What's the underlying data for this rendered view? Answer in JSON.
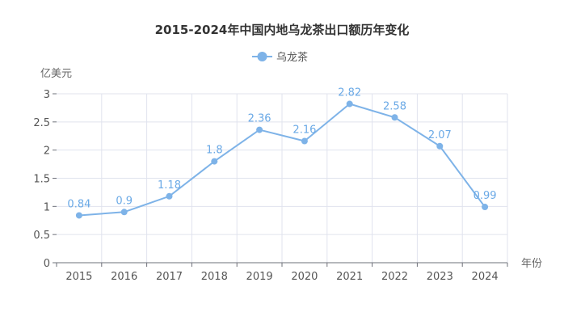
{
  "chart_data": {
    "type": "line",
    "title": "2015-2024年中国内地乌龙茶出口额历年变化",
    "xlabel": "年份",
    "ylabel": "亿美元",
    "categories": [
      "2015",
      "2016",
      "2017",
      "2018",
      "2019",
      "2020",
      "2021",
      "2022",
      "2023",
      "2024"
    ],
    "series": [
      {
        "name": "乌龙茶",
        "values": [
          0.84,
          0.9,
          1.18,
          1.8,
          2.36,
          2.16,
          2.82,
          2.58,
          2.07,
          0.99
        ],
        "color": "#7eb3e8"
      }
    ],
    "ylim": [
      0,
      3
    ],
    "yticks": [
      "0",
      "0.5",
      "1",
      "1.5",
      "2",
      "2.5",
      "3"
    ],
    "grid": true,
    "legend": "top-center"
  }
}
